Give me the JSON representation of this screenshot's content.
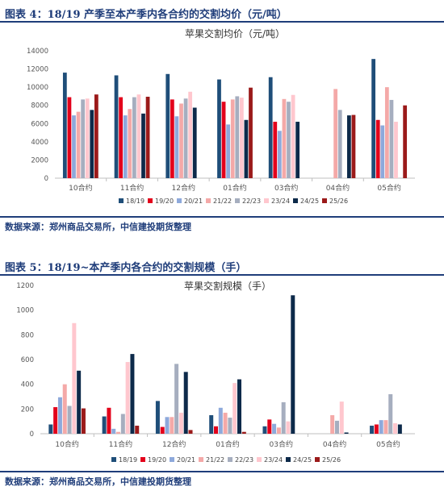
{
  "colors": {
    "header": "#1f3d7a",
    "series": [
      "#1f4e79",
      "#e3001b",
      "#8ea9db",
      "#f4a9a8",
      "#a6aebf",
      "#ffc7ce",
      "#0d2a4a",
      "#9b1a1a"
    ]
  },
  "figures": [
    {
      "header": "图表 4：18/19 产季至本产季内各合约的交割均价（元/吨）",
      "source": "数据来源：郑州商品交易所，中信建投期货整理"
    },
    {
      "header": "图表 5：18/19~本产季内各合约的交割规模（手）",
      "source": "数据来源：郑州商品交易所，中信建投期货整理"
    }
  ],
  "chart_data": [
    {
      "type": "bar",
      "title": "苹果交割均价（元/吨）",
      "categories": [
        "10合约",
        "11合约",
        "12合约",
        "01合约",
        "03合约",
        "04合约",
        "05合约"
      ],
      "ylim": [
        0,
        14000
      ],
      "yticks": [
        "0",
        "2000",
        "4000",
        "6000",
        "8000",
        "10000",
        "12000",
        "14000"
      ],
      "grid": false,
      "legend": "bottom",
      "series": [
        {
          "name": "18/19",
          "values": [
            11600,
            11300,
            11450,
            10850,
            11100,
            null,
            13100
          ]
        },
        {
          "name": "19/20",
          "values": [
            8900,
            8900,
            8650,
            8400,
            6200,
            null,
            6400
          ]
        },
        {
          "name": "20/21",
          "values": [
            6900,
            6900,
            6800,
            5900,
            5200,
            null,
            5800
          ]
        },
        {
          "name": "21/22",
          "values": [
            7300,
            7600,
            8200,
            8650,
            8700,
            9800,
            10000
          ]
        },
        {
          "name": "22/23",
          "values": [
            8650,
            8900,
            8750,
            9000,
            8400,
            7500,
            8600
          ]
        },
        {
          "name": "23/24",
          "values": [
            8750,
            9200,
            9500,
            8850,
            9150,
            null,
            6200
          ]
        },
        {
          "name": "24/25",
          "values": [
            7500,
            7100,
            7750,
            6400,
            6200,
            6900,
            null
          ]
        },
        {
          "name": "25/26",
          "values": [
            9200,
            8950,
            null,
            9950,
            null,
            6950,
            8000
          ]
        }
      ]
    },
    {
      "type": "bar",
      "title": "苹果交割规模（手）",
      "categories": [
        "10合约",
        "11合约",
        "12合约",
        "01合约",
        "03合约",
        "04合约",
        "05合约"
      ],
      "ylim": [
        0,
        1200
      ],
      "yticks": [
        "0",
        "200",
        "400",
        "600",
        "800",
        "1000",
        "1200"
      ],
      "grid": false,
      "legend": "bottom",
      "series": [
        {
          "name": "18/19",
          "values": [
            75,
            140,
            265,
            150,
            60,
            null,
            65
          ]
        },
        {
          "name": "19/20",
          "values": [
            215,
            210,
            55,
            60,
            115,
            null,
            75
          ]
        },
        {
          "name": "20/21",
          "values": [
            295,
            40,
            135,
            210,
            80,
            null,
            110
          ]
        },
        {
          "name": "21/22",
          "values": [
            400,
            15,
            135,
            170,
            50,
            150,
            110
          ]
        },
        {
          "name": "22/23",
          "values": [
            225,
            160,
            565,
            130,
            255,
            105,
            320
          ]
        },
        {
          "name": "23/24",
          "values": [
            895,
            580,
            170,
            410,
            100,
            260,
            85
          ]
        },
        {
          "name": "24/25",
          "values": [
            510,
            645,
            500,
            440,
            1120,
            10,
            75
          ]
        },
        {
          "name": "25/26",
          "values": [
            205,
            65,
            30,
            15,
            null,
            null,
            null
          ]
        }
      ]
    }
  ]
}
